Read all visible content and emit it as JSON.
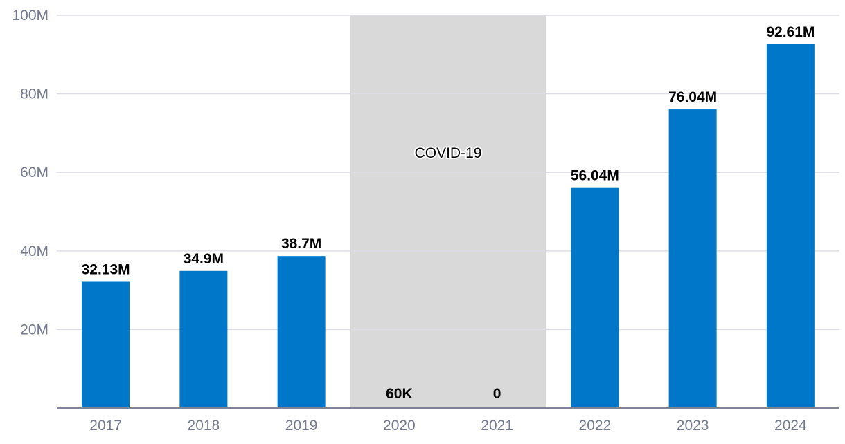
{
  "chart_data": {
    "type": "bar",
    "categories": [
      "2017",
      "2018",
      "2019",
      "2020",
      "2021",
      "2022",
      "2023",
      "2024"
    ],
    "values": [
      32130000,
      34900000,
      38700000,
      60000,
      0,
      56040000,
      76040000,
      92610000
    ],
    "data_labels": [
      "32.13M",
      "34.9M",
      "38.7M",
      "60K",
      "0",
      "56.04M",
      "76.04M",
      "92.61M"
    ],
    "y_ticks": [
      {
        "value": 20000000,
        "label": "20M"
      },
      {
        "value": 40000000,
        "label": "40M"
      },
      {
        "value": 60000000,
        "label": "60M"
      },
      {
        "value": 80000000,
        "label": "80M"
      },
      {
        "value": 100000000,
        "label": "100M"
      }
    ],
    "ylim": [
      0,
      100000000
    ],
    "grid": true,
    "title": "",
    "xlabel": "",
    "ylabel": "",
    "highlight_band": {
      "from": "2020",
      "to": "2021",
      "label": "COVID-19",
      "color": "#d9d9d9"
    },
    "colors": {
      "bar": "#0077c8",
      "grid": "#dcdde6",
      "axis": "#7f8395",
      "tick_text": "#737a8d"
    }
  }
}
